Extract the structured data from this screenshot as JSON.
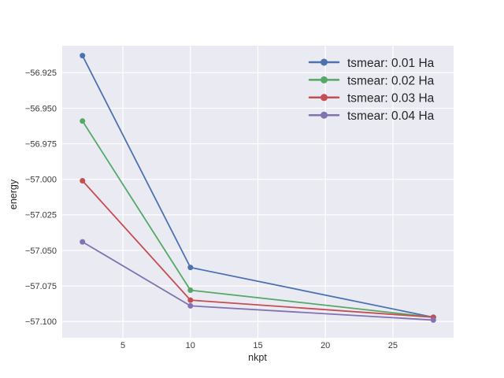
{
  "figure": {
    "background": "#ffffff",
    "plot_background": "#eaeaf2",
    "grid_color": "#ffffff",
    "text_color": "#262626"
  },
  "chart_data": {
    "type": "line",
    "title": "",
    "xlabel": "nkpt",
    "ylabel": "energy",
    "grid": true,
    "legend_position": "upper right",
    "legend_frame": false,
    "xlim": [
      0.5,
      29.5
    ],
    "ylim": [
      -57.1115,
      -56.906
    ],
    "x": [
      2,
      10,
      28
    ],
    "xticks": {
      "values": [
        5,
        10,
        15,
        20,
        25
      ],
      "labels": [
        "5",
        "10",
        "15",
        "20",
        "25"
      ]
    },
    "yticks": {
      "values": [
        -56.925,
        -56.95,
        -56.975,
        -57.0,
        -57.025,
        -57.05,
        -57.075,
        -57.1
      ],
      "labels": [
        "−56.925",
        "−56.950",
        "−56.975",
        "−57.000",
        "−57.025",
        "−57.050",
        "−57.075",
        "−57.100"
      ]
    },
    "series": [
      {
        "name": "tsmear: 0.01 Ha",
        "color": "#4c72b0",
        "values": [
          -56.913,
          -57.062,
          -57.097
        ]
      },
      {
        "name": "tsmear: 0.02 Ha",
        "color": "#55a868",
        "values": [
          -56.959,
          -57.078,
          -57.097
        ]
      },
      {
        "name": "tsmear: 0.03 Ha",
        "color": "#c44e52",
        "values": [
          -57.001,
          -57.085,
          -57.097
        ]
      },
      {
        "name": "tsmear: 0.04 Ha",
        "color": "#8172b2",
        "values": [
          -57.044,
          -57.089,
          -57.099
        ]
      }
    ]
  }
}
